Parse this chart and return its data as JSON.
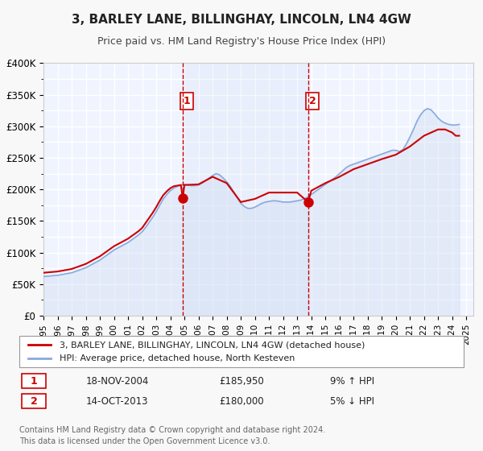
{
  "title": "3, BARLEY LANE, BILLINGHAY, LINCOLN, LN4 4GW",
  "subtitle": "Price paid vs. HM Land Registry's House Price Index (HPI)",
  "xlabel": "",
  "ylabel": "",
  "ylim": [
    0,
    400000
  ],
  "yticks": [
    0,
    50000,
    100000,
    150000,
    200000,
    250000,
    300000,
    350000,
    400000
  ],
  "ytick_labels": [
    "£0",
    "£50K",
    "£100K",
    "£150K",
    "£200K",
    "£250K",
    "£300K",
    "£350K",
    "£400K"
  ],
  "xlim_start": 1995.0,
  "xlim_end": 2025.5,
  "xticks": [
    1995,
    1996,
    1997,
    1998,
    1999,
    2000,
    2001,
    2002,
    2003,
    2004,
    2005,
    2006,
    2007,
    2008,
    2009,
    2010,
    2011,
    2012,
    2013,
    2014,
    2015,
    2016,
    2017,
    2018,
    2019,
    2020,
    2021,
    2022,
    2023,
    2024,
    2025
  ],
  "bg_color": "#f0f4ff",
  "plot_bg_color": "#f0f4ff",
  "grid_color": "#ffffff",
  "marker1_x": 2004.88,
  "marker1_y": 185950,
  "marker1_label": "1",
  "marker1_date": "18-NOV-2004",
  "marker1_price": "£185,950",
  "marker1_hpi": "9% ↑ HPI",
  "marker2_x": 2013.78,
  "marker2_y": 180000,
  "marker2_label": "2",
  "marker2_date": "14-OCT-2013",
  "marker2_price": "£180,000",
  "marker2_hpi": "5% ↓ HPI",
  "sale_color": "#cc0000",
  "hpi_color": "#88aadd",
  "hpi_fill_color": "#c8d8f0",
  "legend_label_sale": "3, BARLEY LANE, BILLINGHAY, LINCOLN, LN4 4GW (detached house)",
  "legend_label_hpi": "HPI: Average price, detached house, North Kesteven",
  "footer_line1": "Contains HM Land Registry data © Crown copyright and database right 2024.",
  "footer_line2": "This data is licensed under the Open Government Licence v3.0.",
  "hpi_data_x": [
    1995.0,
    1995.25,
    1995.5,
    1995.75,
    1996.0,
    1996.25,
    1996.5,
    1996.75,
    1997.0,
    1997.25,
    1997.5,
    1997.75,
    1998.0,
    1998.25,
    1998.5,
    1998.75,
    1999.0,
    1999.25,
    1999.5,
    1999.75,
    2000.0,
    2000.25,
    2000.5,
    2000.75,
    2001.0,
    2001.25,
    2001.5,
    2001.75,
    2002.0,
    2002.25,
    2002.5,
    2002.75,
    2003.0,
    2003.25,
    2003.5,
    2003.75,
    2004.0,
    2004.25,
    2004.5,
    2004.75,
    2005.0,
    2005.25,
    2005.5,
    2005.75,
    2006.0,
    2006.25,
    2006.5,
    2006.75,
    2007.0,
    2007.25,
    2007.5,
    2007.75,
    2008.0,
    2008.25,
    2008.5,
    2008.75,
    2009.0,
    2009.25,
    2009.5,
    2009.75,
    2010.0,
    2010.25,
    2010.5,
    2010.75,
    2011.0,
    2011.25,
    2011.5,
    2011.75,
    2012.0,
    2012.25,
    2012.5,
    2012.75,
    2013.0,
    2013.25,
    2013.5,
    2013.75,
    2014.0,
    2014.25,
    2014.5,
    2014.75,
    2015.0,
    2015.25,
    2015.5,
    2015.75,
    2016.0,
    2016.25,
    2016.5,
    2016.75,
    2017.0,
    2017.25,
    2017.5,
    2017.75,
    2018.0,
    2018.25,
    2018.5,
    2018.75,
    2019.0,
    2019.25,
    2019.5,
    2019.75,
    2020.0,
    2020.25,
    2020.5,
    2020.75,
    2021.0,
    2021.25,
    2021.5,
    2021.75,
    2022.0,
    2022.25,
    2022.5,
    2022.75,
    2023.0,
    2023.25,
    2023.5,
    2023.75,
    2024.0,
    2024.25,
    2024.5
  ],
  "hpi_data_y": [
    62000,
    62500,
    63000,
    63500,
    64000,
    65000,
    66000,
    67000,
    68000,
    70000,
    72000,
    74000,
    76000,
    79000,
    82000,
    85000,
    88000,
    92000,
    96000,
    100000,
    104000,
    107000,
    110000,
    113000,
    116000,
    120000,
    124000,
    128000,
    133000,
    140000,
    148000,
    156000,
    165000,
    175000,
    185000,
    192000,
    198000,
    202000,
    205000,
    207000,
    208000,
    207000,
    206000,
    206000,
    207000,
    210000,
    214000,
    218000,
    222000,
    225000,
    223000,
    218000,
    212000,
    205000,
    196000,
    187000,
    178000,
    173000,
    170000,
    170000,
    172000,
    175000,
    178000,
    180000,
    181000,
    182000,
    182000,
    181000,
    180000,
    180000,
    180000,
    181000,
    182000,
    183000,
    185000,
    188000,
    192000,
    196000,
    200000,
    204000,
    208000,
    212000,
    216000,
    220000,
    225000,
    230000,
    235000,
    238000,
    240000,
    242000,
    244000,
    246000,
    248000,
    250000,
    252000,
    254000,
    256000,
    258000,
    260000,
    262000,
    262000,
    260000,
    263000,
    272000,
    283000,
    295000,
    308000,
    318000,
    325000,
    328000,
    326000,
    320000,
    313000,
    308000,
    305000,
    303000,
    302000,
    302000,
    303000
  ],
  "sale_data_x": [
    1995.0,
    1995.25,
    1995.5,
    1995.75,
    1996.0,
    1996.25,
    1996.5,
    1996.75,
    1997.0,
    1997.25,
    1997.5,
    1997.75,
    1998.0,
    1998.25,
    1998.5,
    1998.75,
    1999.0,
    1999.25,
    1999.5,
    1999.75,
    2000.0,
    2000.25,
    2000.5,
    2000.75,
    2001.0,
    2001.25,
    2001.5,
    2001.75,
    2002.0,
    2002.25,
    2002.5,
    2002.75,
    2003.0,
    2003.25,
    2003.5,
    2003.75,
    2004.0,
    2004.25,
    2004.5,
    2004.75,
    2004.88,
    2005.0,
    2006.0,
    2007.0,
    2008.0,
    2009.0,
    2010.0,
    2011.0,
    2012.0,
    2013.0,
    2013.78,
    2014.0,
    2015.0,
    2016.0,
    2017.0,
    2018.0,
    2019.0,
    2020.0,
    2021.0,
    2022.0,
    2023.0,
    2023.5,
    2024.0,
    2024.25,
    2024.5
  ],
  "sale_data_y": [
    68000,
    68500,
    69000,
    69500,
    70000,
    71000,
    72000,
    73000,
    74000,
    76000,
    78000,
    80000,
    82000,
    85000,
    88000,
    91000,
    94000,
    98000,
    102000,
    106000,
    110000,
    113000,
    116000,
    119000,
    122000,
    126000,
    130000,
    134000,
    139000,
    147000,
    155000,
    163000,
    172000,
    182000,
    191000,
    197000,
    202000,
    205000,
    206000,
    207000,
    185950,
    207000,
    208000,
    220000,
    210000,
    180000,
    185000,
    195000,
    195000,
    195000,
    180000,
    198000,
    210000,
    220000,
    232000,
    240000,
    248000,
    255000,
    268000,
    285000,
    295000,
    295000,
    290000,
    285000,
    285000
  ]
}
